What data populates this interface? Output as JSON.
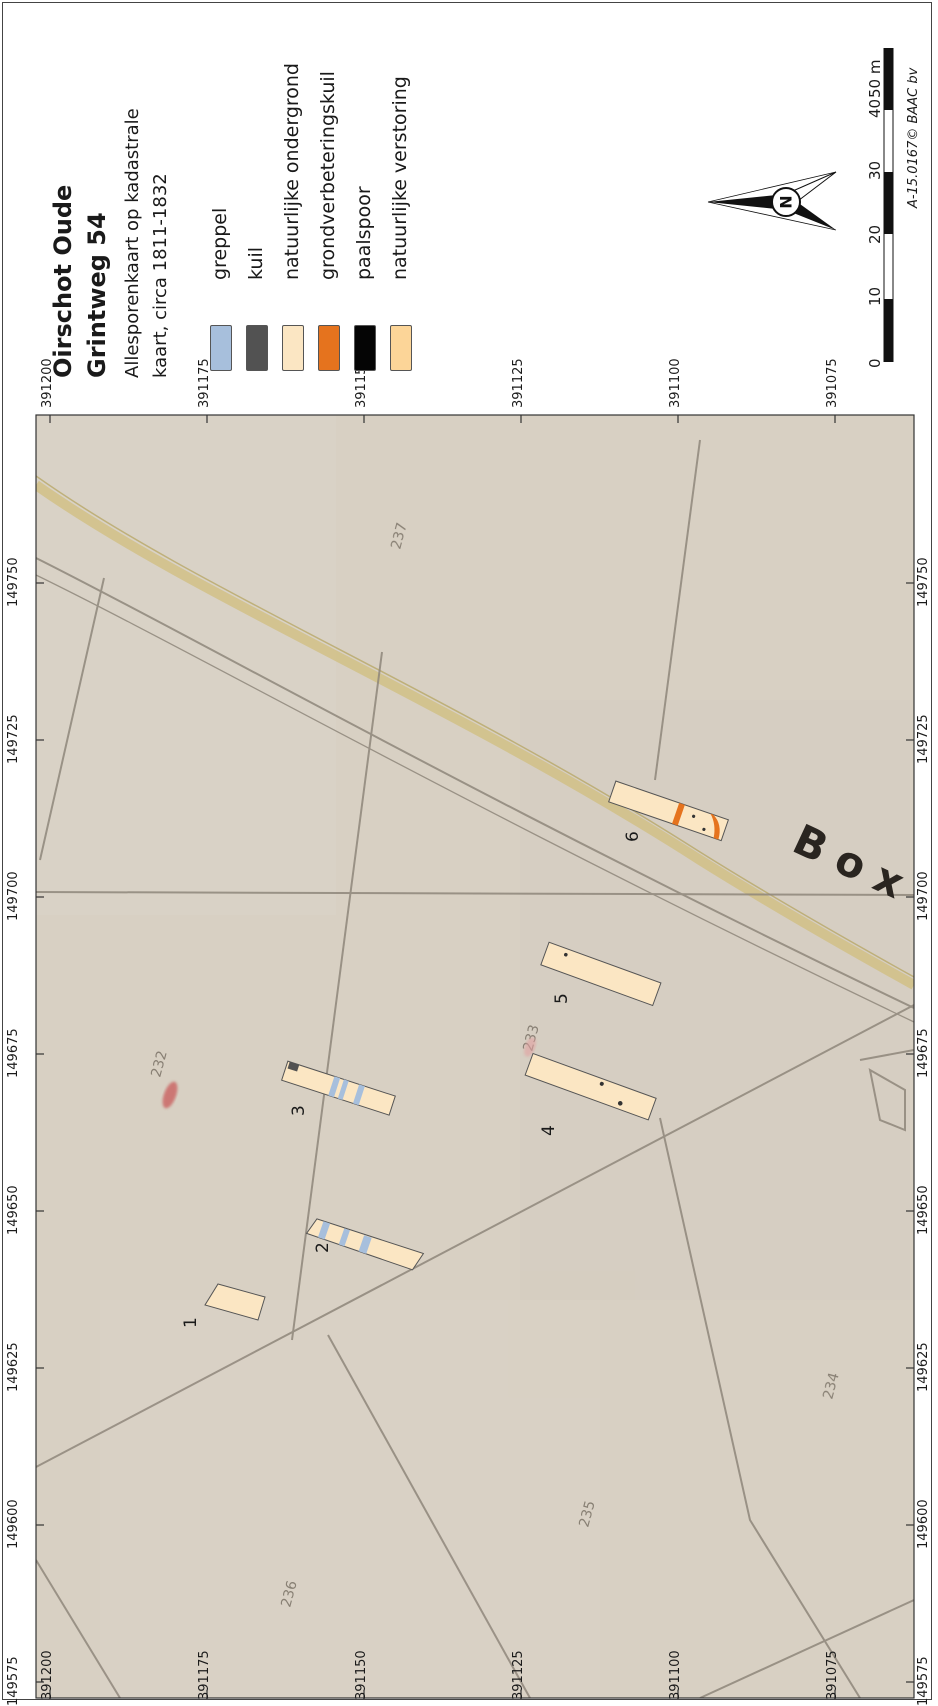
{
  "title": {
    "line1": "Oirschot Oude",
    "line2": "Grintweg 54"
  },
  "subtitle": {
    "line1": "Allesporenkaart op kadastrale",
    "line2": "kaart, circa 1811-1832"
  },
  "legend": [
    {
      "label": "greppel",
      "color": "#a7bfdc"
    },
    {
      "label": "kuil",
      "color": "#525252"
    },
    {
      "label": "natuurlijke ondergrond",
      "color": "#fbe6c3"
    },
    {
      "label": "grondverbeteringskuil",
      "color": "#e5731e"
    },
    {
      "label": "paalspoor",
      "color": "#050505"
    },
    {
      "label": "natuurlijke verstoring",
      "color": "#fcd598"
    }
  ],
  "scalebar": {
    "labels": [
      "0",
      "10",
      "20",
      "30",
      "40",
      "50 m"
    ]
  },
  "credit": "A-15.0167© BAAC bv",
  "north_arrow": {
    "letter": "N"
  },
  "grid": {
    "x_ticks": [
      "149575",
      "149600",
      "149625",
      "149650",
      "149675",
      "149700",
      "149725",
      "149750"
    ],
    "y_ticks": [
      "391075",
      "391100",
      "391125",
      "391150",
      "391175",
      "391200"
    ]
  },
  "map_labels": {
    "trenches": [
      "1",
      "2",
      "3",
      "4",
      "5",
      "6"
    ],
    "parcels": [
      "232",
      "233",
      "234",
      "235",
      "236",
      "237"
    ],
    "road_text": "Box"
  },
  "colors": {
    "map_bg": "#d8d0c3",
    "ditch_road": "#d2c189",
    "cadastral_line": "#8f877b"
  }
}
